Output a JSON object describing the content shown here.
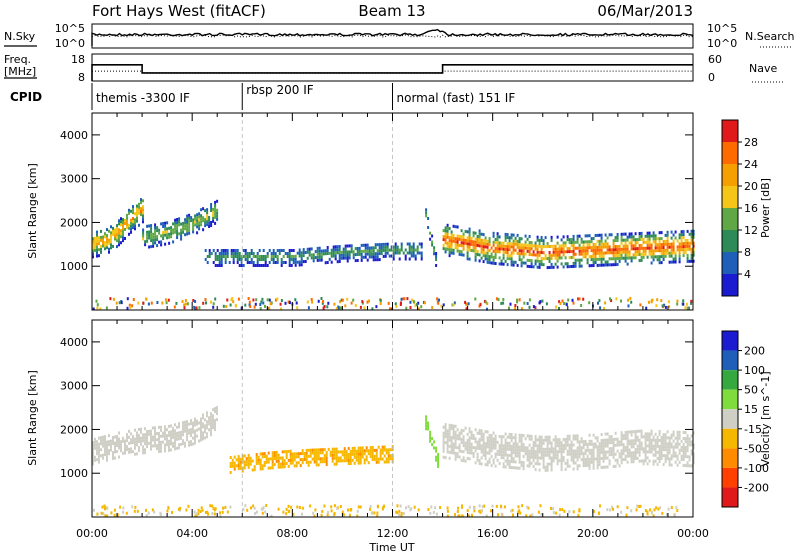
{
  "header": {
    "station": "Fort Hays West (fitACF)",
    "beam": "Beam 13",
    "date": "06/Mar/2013"
  },
  "noise_panel": {
    "left_label": "N.Sky",
    "right_label": "N.Search",
    "left_ticks": [
      "10^5",
      "10^0"
    ],
    "right_ticks": [
      "10^5",
      "10^0"
    ]
  },
  "freq_panel": {
    "left_label_line1": "Freq.",
    "left_label_line2": "[MHz]",
    "right_label": "Nave",
    "left_ticks": [
      "18",
      "8"
    ],
    "right_ticks": [
      "60",
      "0"
    ]
  },
  "cpid_panel": {
    "label": "CPID",
    "segments": [
      {
        "text": "themis -3300 IF",
        "start": 0
      },
      {
        "text": "rbsp 200 IF",
        "start": 6
      },
      {
        "text": "normal (fast) 151 IF",
        "start": 12
      }
    ]
  },
  "x_axis": {
    "label": "Time UT",
    "ticks": [
      "00:00",
      "04:00",
      "08:00",
      "12:00",
      "16:00",
      "20:00",
      "00:00"
    ]
  },
  "colors": {
    "power": [
      "#1b1bd0",
      "#1f5fb8",
      "#2e8b57",
      "#5fa845",
      "#f5c518",
      "#f5a000",
      "#ff6a00",
      "#e01a1a"
    ],
    "velocity": [
      "#1b1bd0",
      "#1f5fb8",
      "#35a840",
      "#7fdc3c",
      "#cfcfc6",
      "#f5b700",
      "#ff8c00",
      "#ff4000",
      "#e01a1a"
    ]
  },
  "chart_data": [
    {
      "type": "heatmap",
      "quantity": "power",
      "ylabel": "Slant Range [km]",
      "xlim": [
        0,
        24
      ],
      "ylim": [
        0,
        4500
      ],
      "yticks": [
        1000,
        2000,
        3000,
        4000
      ],
      "colorbar": {
        "label": "Power [dB]",
        "range": [
          0,
          32
        ],
        "ticks": [
          "4",
          "8",
          "12",
          "16",
          "20",
          "24",
          "28"
        ]
      },
      "echo_bands": [
        {
          "t": [
            0.0,
            0.5,
            1.0,
            1.5,
            2.0
          ],
          "center": [
            1550,
            1600,
            1800,
            2100,
            2350
          ],
          "halfwidth": 300,
          "power": 20
        },
        {
          "t": [
            2.0,
            3.0,
            4.0,
            5.0
          ],
          "center": [
            1700,
            1800,
            2000,
            2300
          ],
          "halfwidth": 250,
          "power": 14
        },
        {
          "t": [
            4.5,
            6.0,
            8.0,
            10.0,
            12.0,
            13.2
          ],
          "center": [
            1250,
            1250,
            1250,
            1350,
            1400,
            1400
          ],
          "halfwidth": 200,
          "power": 10
        },
        {
          "t": [
            13.3,
            13.7
          ],
          "center": [
            2200,
            1200
          ],
          "halfwidth": 150,
          "power": 12
        },
        {
          "t": [
            14.0,
            16.0,
            18.0,
            20.0,
            22.0,
            24.0
          ],
          "center": [
            1650,
            1450,
            1350,
            1400,
            1450,
            1500
          ],
          "halfwidth": 350,
          "power": 24
        }
      ]
    },
    {
      "type": "heatmap",
      "quantity": "velocity",
      "ylabel": "Slant Range [km]",
      "xlim": [
        0,
        24
      ],
      "ylim": [
        0,
        4500
      ],
      "yticks": [
        1000,
        2000,
        3000,
        4000
      ],
      "colorbar": {
        "label": "Velocity [m s^-1]",
        "levels": [
          "-200",
          "-100",
          "-50",
          "-15",
          "15",
          "50",
          "100",
          "200"
        ]
      },
      "echo_bands": [
        {
          "t": [
            0.0,
            1.0,
            2.0,
            3.0,
            4.0,
            5.0
          ],
          "center": [
            1550,
            1700,
            1800,
            1850,
            2000,
            2300
          ],
          "halfwidth": 300,
          "velocity": 0
        },
        {
          "t": [
            5.5,
            7.0,
            8.0,
            10.0,
            12.0
          ],
          "center": [
            1250,
            1350,
            1400,
            1450,
            1500
          ],
          "halfwidth": 200,
          "velocity": -40
        },
        {
          "t": [
            13.3,
            13.8
          ],
          "center": [
            2200,
            1300
          ],
          "halfwidth": 150,
          "velocity": 30
        },
        {
          "t": [
            14.0,
            16.0,
            18.0,
            20.0,
            22.0,
            24.0
          ],
          "center": [
            1800,
            1600,
            1500,
            1550,
            1650,
            1600
          ],
          "halfwidth": 400,
          "velocity": 0
        }
      ]
    }
  ]
}
